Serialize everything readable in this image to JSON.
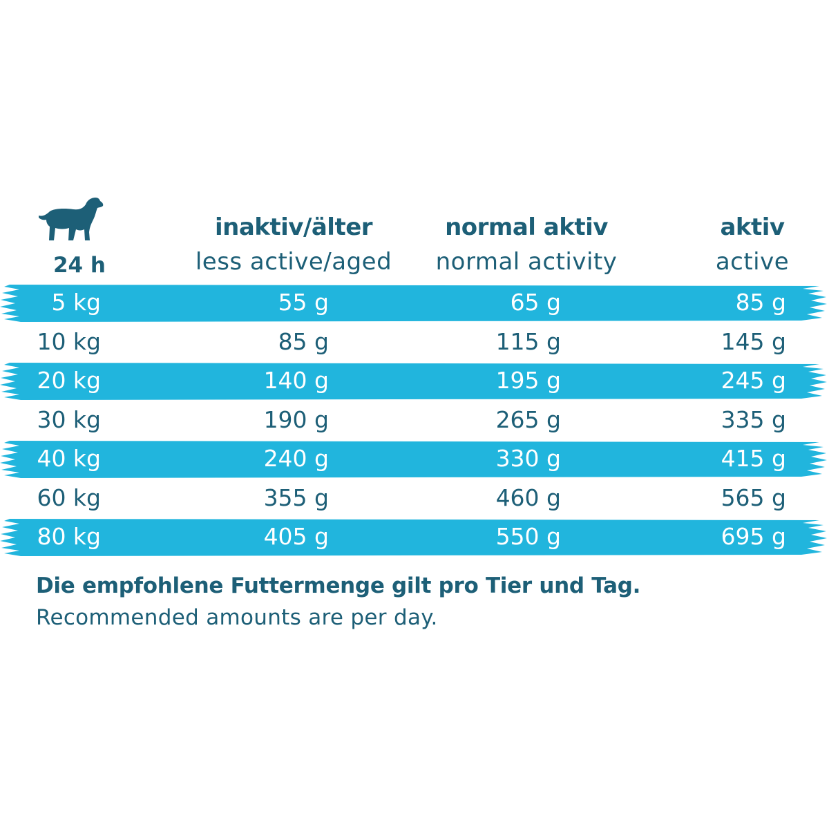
{
  "colors": {
    "text": "#1d5f77",
    "stripe": "#21b5dd",
    "stripe_text": "#ffffff"
  },
  "header": {
    "icon": "dog-icon",
    "period": "24 h",
    "columns": [
      {
        "de": "inaktiv/älter",
        "en": "less active/aged"
      },
      {
        "de": "normal aktiv",
        "en": "normal activity"
      },
      {
        "de": "aktiv",
        "en": "active"
      }
    ]
  },
  "rows": [
    {
      "weight": "5 kg",
      "values": [
        "55 g",
        "65 g",
        "85 g"
      ]
    },
    {
      "weight": "10 kg",
      "values": [
        "85 g",
        "115 g",
        "145 g"
      ]
    },
    {
      "weight": "20 kg",
      "values": [
        "140 g",
        "195 g",
        "245 g"
      ]
    },
    {
      "weight": "30 kg",
      "values": [
        "190 g",
        "265 g",
        "335 g"
      ]
    },
    {
      "weight": "40 kg",
      "values": [
        "240 g",
        "330 g",
        "415 g"
      ]
    },
    {
      "weight": "60 kg",
      "values": [
        "355 g",
        "460 g",
        "565 g"
      ]
    },
    {
      "weight": "80 kg",
      "values": [
        "405 g",
        "550 g",
        "695 g"
      ]
    }
  ],
  "footer": {
    "de": "Die empfohlene Futtermenge gilt pro Tier und Tag.",
    "en": "Recommended amounts are per day."
  }
}
